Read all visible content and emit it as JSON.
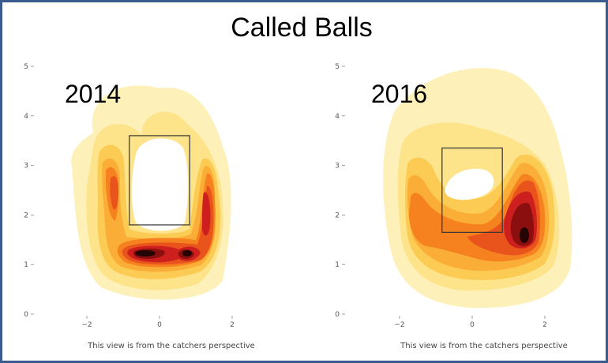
{
  "title": "Called Balls",
  "chart_data": [
    {
      "type": "contour-density",
      "label": "2014",
      "caption": "This view is from the catchers perspective",
      "xlim": [
        -2.9,
        2.8
      ],
      "ylim": [
        0,
        5.1
      ],
      "xticks": [
        -2,
        0,
        2
      ],
      "yticks": [
        0,
        1,
        2,
        3,
        4,
        5
      ],
      "strike_zone": {
        "x": [
          -0.83,
          0.83
        ],
        "y": [
          1.8,
          3.6
        ]
      },
      "colors": [
        "#fef0b9",
        "#fde38a",
        "#fccb53",
        "#fbae37",
        "#f5821f",
        "#e9531c",
        "#cd201e",
        "#8c0f0f",
        "#250404"
      ],
      "peaks": [
        {
          "x": -0.55,
          "y": 1.25,
          "level": 9
        },
        {
          "x": 0.75,
          "y": 1.25,
          "level": 9
        },
        {
          "x": 1.3,
          "y": 2.0,
          "level": 7
        },
        {
          "x": -1.3,
          "y": 2.7,
          "level": 6
        }
      ]
    },
    {
      "type": "contour-density",
      "label": "2016",
      "caption": "This view is from the catchers perspective",
      "xlim": [
        -2.9,
        2.8
      ],
      "ylim": [
        0,
        5.1
      ],
      "xticks": [
        -2,
        0,
        2
      ],
      "yticks": [
        0,
        1,
        2,
        3,
        4,
        5
      ],
      "strike_zone": {
        "x": [
          -0.83,
          0.83
        ],
        "y": [
          1.65,
          3.35
        ]
      },
      "colors": [
        "#fef0b9",
        "#fde38a",
        "#fccb53",
        "#fbae37",
        "#f5821f",
        "#e9531c",
        "#cd201e",
        "#8c0f0f",
        "#250404"
      ],
      "peaks": [
        {
          "x": 1.45,
          "y": 1.6,
          "level": 9
        },
        {
          "x": -1.3,
          "y": 2.0,
          "level": 5
        },
        {
          "x": 0.4,
          "y": 1.1,
          "level": 4
        }
      ]
    }
  ]
}
